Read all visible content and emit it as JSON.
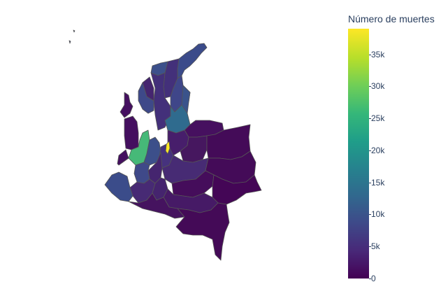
{
  "map": {
    "title": "",
    "country_shape": "colombia-departments",
    "border_color": "#555555",
    "regions": [
      {
        "id": "guajira",
        "color": "#3b4b8a"
      },
      {
        "id": "magdalena",
        "color": "#43307a"
      },
      {
        "id": "atlantico",
        "color": "#3c508b"
      },
      {
        "id": "bolivar",
        "color": "#43307a"
      },
      {
        "id": "cesar",
        "color": "#3f4689"
      },
      {
        "id": "sucre",
        "color": "#45256f"
      },
      {
        "id": "cordoba",
        "color": "#3e4989"
      },
      {
        "id": "norte-santander",
        "color": "#3a538b"
      },
      {
        "id": "santander",
        "color": "#2f6b8e"
      },
      {
        "id": "choco",
        "color": "#440f5f"
      },
      {
        "id": "antioquia",
        "color": "#46b978"
      },
      {
        "id": "arauca",
        "color": "#46105f"
      },
      {
        "id": "boyaca",
        "color": "#471e6b"
      },
      {
        "id": "casanare",
        "color": "#46175f"
      },
      {
        "id": "vichada",
        "color": "#440b58"
      },
      {
        "id": "caldas-risaralda",
        "color": "#3c4f8a"
      },
      {
        "id": "bogota",
        "color": "#fde725"
      },
      {
        "id": "cundinamarca",
        "color": "#46327e"
      },
      {
        "id": "tolima",
        "color": "#45256f"
      },
      {
        "id": "valle",
        "color": "#3f4989"
      },
      {
        "id": "meta",
        "color": "#472b74"
      },
      {
        "id": "guainia",
        "color": "#440b58"
      },
      {
        "id": "cauca",
        "color": "#472a74"
      },
      {
        "id": "huila",
        "color": "#45246e"
      },
      {
        "id": "narino",
        "color": "#3b4c8a"
      },
      {
        "id": "guaviare",
        "color": "#450d5b"
      },
      {
        "id": "vaupes",
        "color": "#440656"
      },
      {
        "id": "caqueta",
        "color": "#461a66"
      },
      {
        "id": "putumayo",
        "color": "#45135f"
      },
      {
        "id": "amazonas",
        "color": "#440a57"
      },
      {
        "id": "san-andres",
        "color": "#3b4c8a"
      }
    ]
  },
  "colorbar": {
    "title": "Número de muertes",
    "colorscale": "viridis",
    "min": 0,
    "max": 39000,
    "ticks": [
      {
        "label": "0",
        "value": 0
      },
      {
        "label": "5k",
        "value": 5000
      },
      {
        "label": "10k",
        "value": 10000
      },
      {
        "label": "15k",
        "value": 15000
      },
      {
        "label": "20k",
        "value": 20000
      },
      {
        "label": "25k",
        "value": 25000
      },
      {
        "label": "30k",
        "value": 30000
      },
      {
        "label": "35k",
        "value": 35000
      }
    ]
  }
}
